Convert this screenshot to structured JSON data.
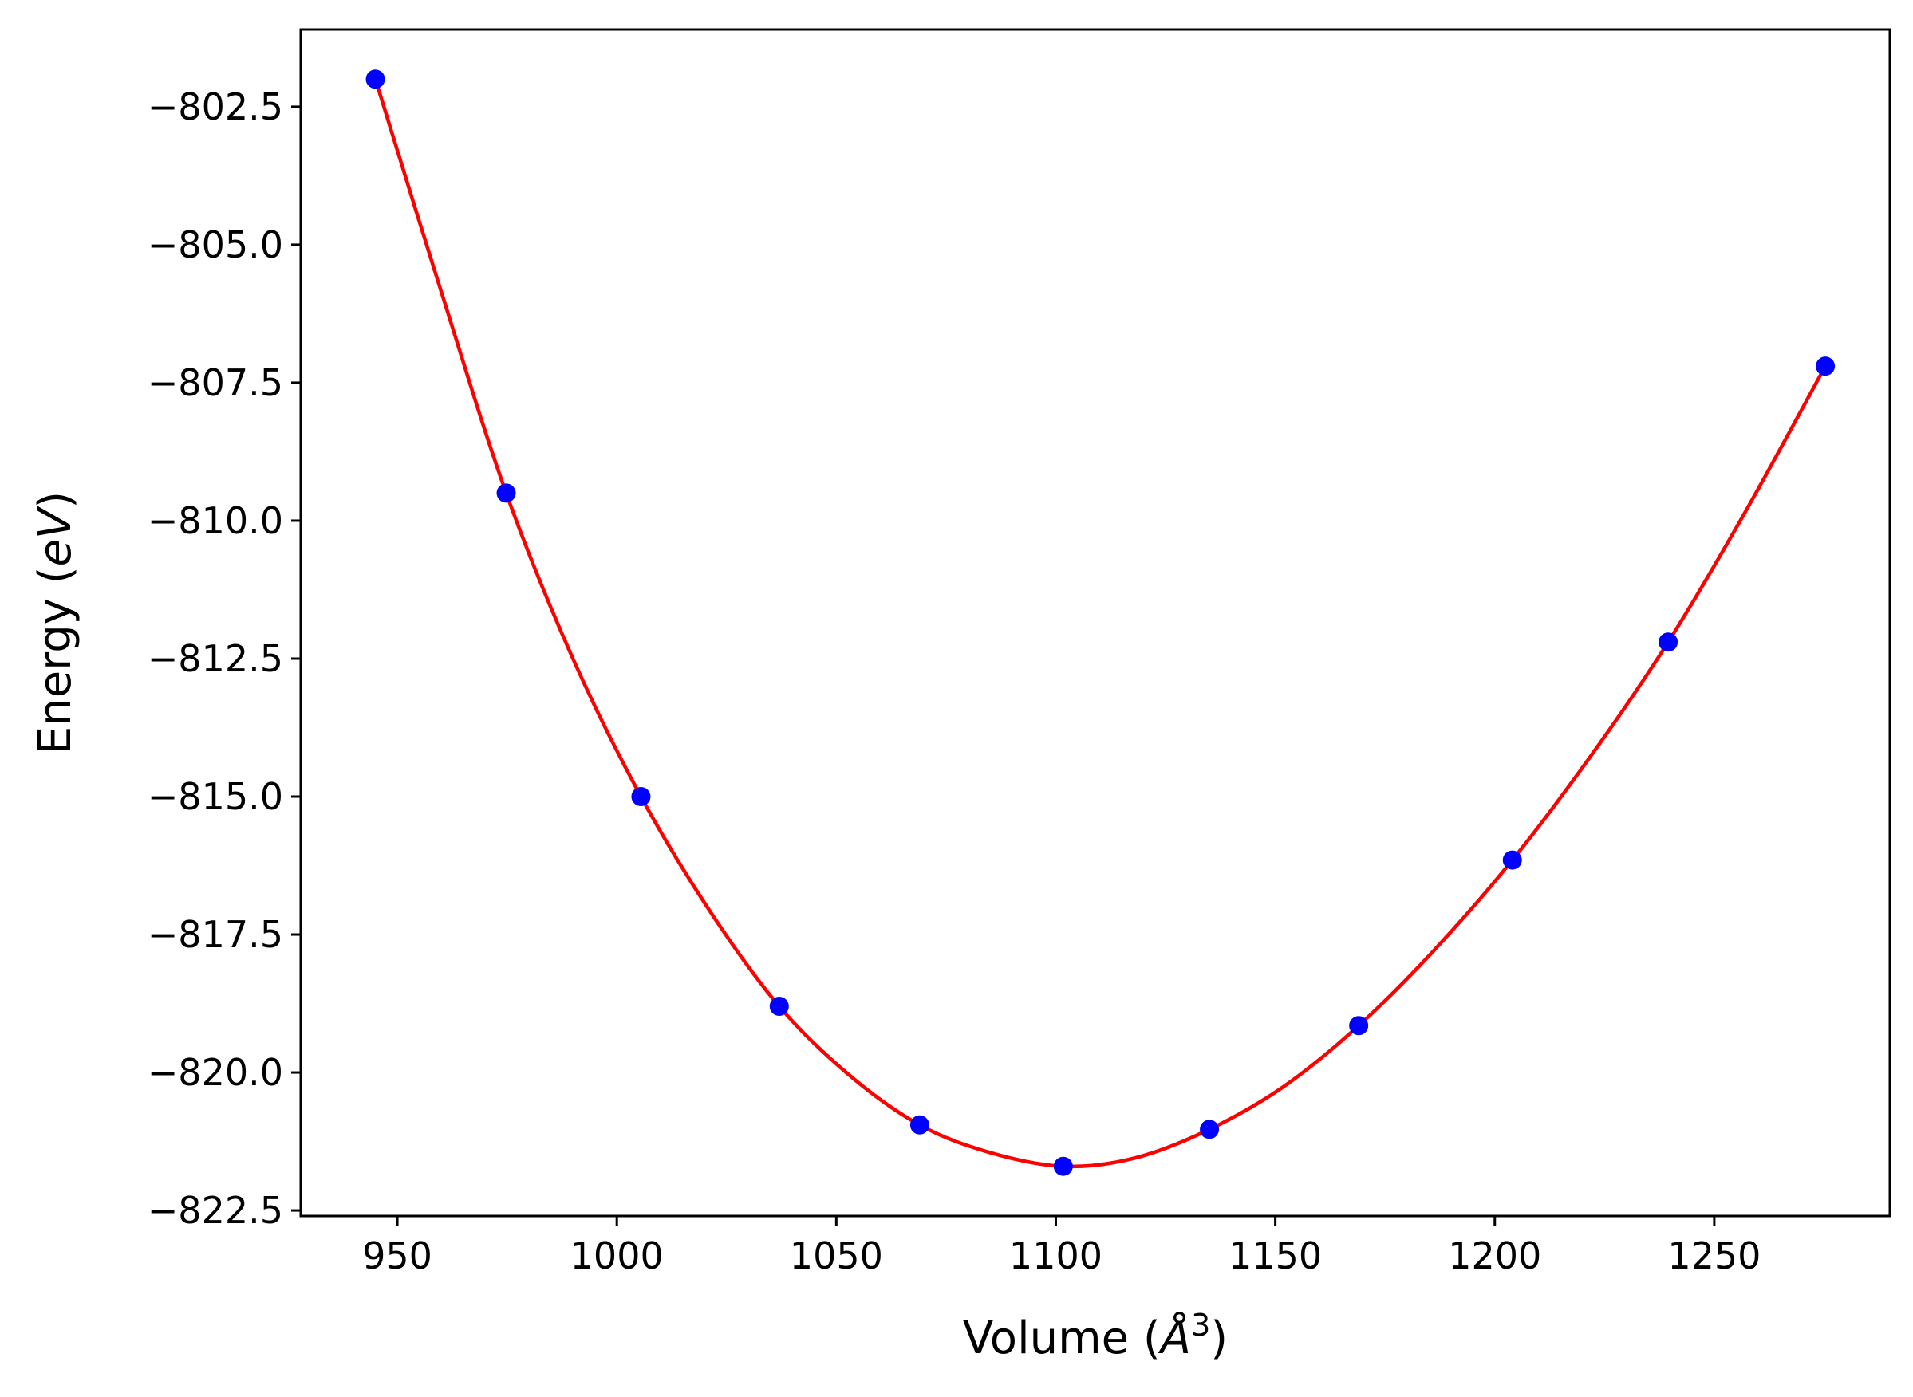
{
  "chart_data": {
    "type": "scatter",
    "title": "",
    "xlabel": {
      "prefix": "Volume (",
      "symbol": "Å",
      "superscript": "3",
      "suffix": ")"
    },
    "ylabel": {
      "prefix": "Energy (",
      "italic": "eV",
      "suffix": ")"
    },
    "xlim": [
      928,
      1290
    ],
    "ylim": [
      -822.6,
      -801.1
    ],
    "x_ticks": [
      950,
      1000,
      1050,
      1100,
      1150,
      1200,
      1250
    ],
    "x_tick_labels": [
      "950",
      "1000",
      "1050",
      "1100",
      "1150",
      "1200",
      "1250"
    ],
    "y_ticks": [
      -802.5,
      -805.0,
      -807.5,
      -810.0,
      -812.5,
      -815.0,
      -817.5,
      -820.0,
      -822.5
    ],
    "y_tick_labels": [
      "−802.5",
      "−805.0",
      "−807.5",
      "−810.0",
      "−812.5",
      "−815.0",
      "−817.5",
      "−820.0",
      "−822.5"
    ],
    "grid": false,
    "series": [
      {
        "kind": "points",
        "color": "#0000ff",
        "x": [
          945,
          974.8,
          1005.5,
          1037,
          1069,
          1101.7,
          1135,
          1169,
          1204,
          1239.5,
          1275.3
        ],
        "y": [
          -802.0,
          -809.5,
          -815.0,
          -818.8,
          -820.95,
          -821.7,
          -821.03,
          -819.15,
          -816.15,
          -812.2,
          -807.2
        ]
      },
      {
        "kind": "fit-curve",
        "color": "#ff0000",
        "x": [
          945,
          960,
          974.8,
          990,
          1005.5,
          1021,
          1037,
          1053,
          1069,
          1085,
          1101.7,
          1118,
          1135,
          1152,
          1169,
          1186,
          1204,
          1222,
          1239.5,
          1257,
          1275.3
        ],
        "y": [
          -802.0,
          -805.85,
          -809.5,
          -812.5,
          -815.0,
          -817.05,
          -818.8,
          -820.05,
          -820.95,
          -821.45,
          -821.7,
          -821.55,
          -821.03,
          -820.25,
          -819.15,
          -817.8,
          -816.15,
          -814.25,
          -812.2,
          -809.85,
          -807.2
        ]
      }
    ]
  }
}
